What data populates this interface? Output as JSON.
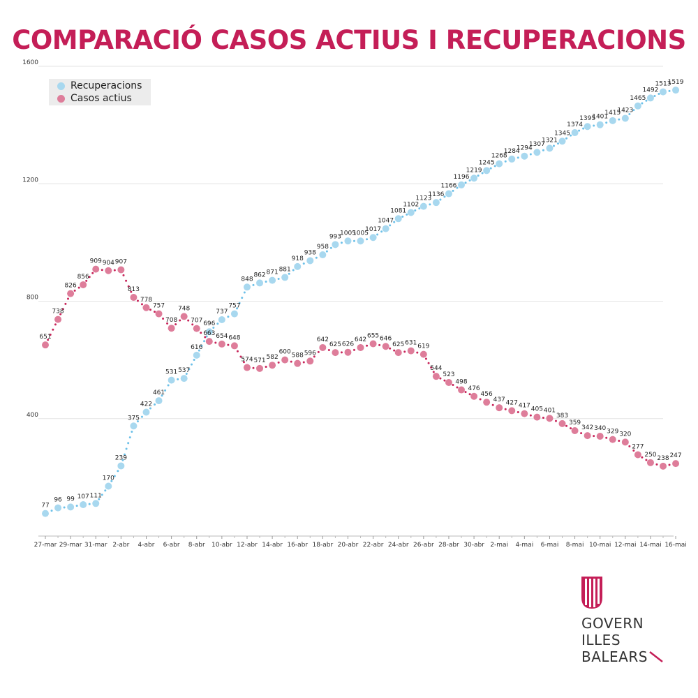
{
  "title": "COMPARACIÓ CASOS ACTIUS I RECUPERACIONS",
  "logo": {
    "lines": [
      "GOVERN",
      "ILLES",
      "BALEARS"
    ],
    "color": "#c41e57"
  },
  "chart_data": {
    "type": "line",
    "title": "COMPARACIÓ CASOS ACTIUS I RECUPERACIONS",
    "xlabel": "",
    "ylabel": "",
    "ylim": [
      0,
      1600
    ],
    "yticks": [
      400,
      800,
      1200,
      1600
    ],
    "grid": true,
    "legend_position": "top-left",
    "x_tick_labels": [
      "27-mar",
      "29-mar",
      "31-mar",
      "2-abr",
      "4-abr",
      "6-abr",
      "8-abr",
      "10-abr",
      "12-abr",
      "14-abr",
      "16-abr",
      "18-abr",
      "20-abr",
      "22-abr",
      "24-abr",
      "26-abr",
      "28-abr",
      "30-abr",
      "2-mai",
      "4-mai",
      "6-mai",
      "8-mai",
      "10-mai",
      "12-mai",
      "14-mai",
      "16-mai"
    ],
    "labeled_points": 50,
    "series": [
      {
        "name": "Recuperacions",
        "color": "#a8d8ef",
        "values": [
          77,
          96,
          99,
          107,
          111,
          170,
          239,
          375,
          422,
          461,
          531,
          537,
          616,
          696,
          737,
          757,
          848,
          862,
          871,
          881,
          918,
          938,
          958,
          993,
          1005,
          1005,
          1017,
          1047,
          1081,
          1102,
          1123,
          1136,
          1166,
          1196,
          1219,
          1245,
          1268,
          1284,
          1294,
          1307,
          1321,
          1345,
          1374,
          1395,
          1401,
          1415,
          1423,
          1465,
          1492,
          1513,
          1519
        ]
      },
      {
        "name": "Casos actius",
        "color": "#de7d9a",
        "values": [
          651,
          738,
          826,
          856,
          909,
          904,
          907,
          813,
          778,
          757,
          708,
          748,
          707,
          663,
          654,
          648,
          574,
          571,
          582,
          600,
          588,
          596,
          642,
          625,
          626,
          642,
          655,
          646,
          625,
          631,
          619,
          544,
          523,
          498,
          476,
          456,
          437,
          427,
          417,
          405,
          401,
          383,
          359,
          342,
          340,
          329,
          320,
          277,
          250,
          238,
          247
        ]
      }
    ]
  }
}
